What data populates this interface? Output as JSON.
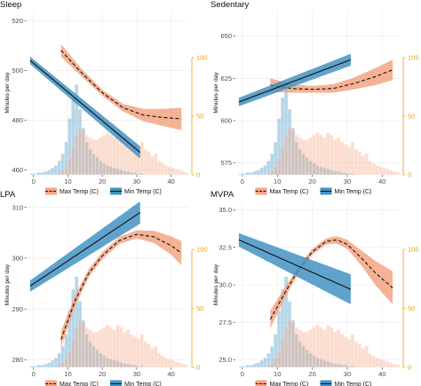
{
  "figure": {
    "y_axis_label": "Minutes per day"
  },
  "colors": {
    "max_temp": "#f4a582",
    "min_temp": "#4393c3",
    "secondary_axis": "#e3a21a"
  },
  "legend": {
    "entries": [
      "Max Temp (C)",
      "Min Temp (C)"
    ]
  },
  "chart_data": [
    {
      "type": "line",
      "title": "Sleep",
      "ylabel": "Minutes per day",
      "xlim": [
        -2,
        45
      ],
      "ylim": [
        458,
        524
      ],
      "x_ticks": [
        0,
        10,
        20,
        30,
        40
      ],
      "y_ticks": [
        460,
        480,
        500,
        520
      ],
      "secondary_axis": {
        "ylim": [
          0,
          140
        ],
        "ticks": [
          0,
          50,
          100
        ]
      },
      "series": [
        {
          "name": "Max Temp (C)",
          "style": "dashed curve with ribbon",
          "x": [
            8,
            14,
            20,
            26,
            32,
            38,
            43
          ],
          "y": [
            508,
            499,
            491,
            485,
            482,
            481,
            480.5
          ],
          "band_half_width": [
            2.5,
            1.5,
            1.2,
            1.5,
            2.5,
            3.5,
            4.5
          ]
        },
        {
          "name": "Min Temp (C)",
          "style": "solid line with ribbon",
          "x": [
            -1,
            31
          ],
          "y": [
            504,
            467
          ],
          "band_half_width": [
            1.5,
            2.5
          ]
        }
      ],
      "histograms": [
        {
          "name": "Min Temp (C)",
          "x_start": -1,
          "bin_width": 1,
          "counts": [
            1,
            1,
            2,
            2,
            3,
            4,
            6,
            8,
            12,
            18,
            28,
            48,
            66,
            77,
            56,
            40,
            28,
            22,
            18,
            15,
            12,
            10,
            8,
            7,
            6,
            5,
            4,
            3,
            3,
            2,
            2,
            1,
            1
          ]
        },
        {
          "name": "Max Temp (C)",
          "x_start": 7,
          "bin_width": 1,
          "counts": [
            2,
            4,
            8,
            14,
            24,
            34,
            40,
            38,
            34,
            32,
            30,
            30,
            32,
            34,
            36,
            34,
            32,
            36,
            34,
            30,
            32,
            28,
            26,
            24,
            28,
            22,
            20,
            16,
            18,
            12,
            10,
            8,
            7,
            6,
            5,
            4,
            3,
            2
          ]
        }
      ]
    },
    {
      "type": "line",
      "title": "Sedentary",
      "ylabel": "Minutes per day",
      "xlim": [
        -2,
        45
      ],
      "ylim": [
        568,
        665
      ],
      "x_ticks": [
        0,
        10,
        20,
        30,
        40
      ],
      "y_ticks": [
        575,
        600,
        625,
        650
      ],
      "secondary_axis": {
        "ylim": [
          0,
          140
        ],
        "ticks": [
          0,
          50,
          100
        ]
      },
      "series": [
        {
          "name": "Max Temp (C)",
          "style": "dashed curve with ribbon",
          "x": [
            8,
            14,
            20,
            26,
            32,
            38,
            43
          ],
          "y": [
            621,
            619,
            618.5,
            619,
            622,
            626,
            630
          ],
          "band_half_width": [
            4,
            2.5,
            2,
            2.5,
            3.5,
            5,
            6
          ]
        },
        {
          "name": "Min Temp (C)",
          "style": "solid line with ribbon",
          "x": [
            -1,
            31
          ],
          "y": [
            611,
            636
          ],
          "band_half_width": [
            2.5,
            3.5
          ]
        }
      ],
      "histograms": [
        {
          "name": "Min Temp (C)",
          "x_start": -1,
          "bin_width": 1,
          "counts": [
            1,
            1,
            2,
            2,
            3,
            4,
            6,
            8,
            12,
            18,
            28,
            48,
            66,
            77,
            56,
            40,
            28,
            22,
            18,
            15,
            12,
            10,
            8,
            7,
            6,
            5,
            4,
            3,
            3,
            2,
            2,
            1,
            1
          ]
        },
        {
          "name": "Max Temp (C)",
          "x_start": 7,
          "bin_width": 1,
          "counts": [
            2,
            4,
            8,
            14,
            24,
            34,
            40,
            38,
            34,
            32,
            30,
            30,
            32,
            34,
            36,
            34,
            32,
            36,
            34,
            30,
            32,
            28,
            26,
            24,
            28,
            22,
            20,
            16,
            18,
            12,
            10,
            8,
            7,
            6,
            5,
            4,
            3,
            2
          ]
        }
      ]
    },
    {
      "type": "line",
      "title": "LPA",
      "ylabel": "Minutes per day",
      "xlim": [
        -2,
        45
      ],
      "ylim": [
        278.5,
        311
      ],
      "x_ticks": [
        0,
        10,
        20,
        30,
        40
      ],
      "y_ticks": [
        280,
        290,
        300,
        310
      ],
      "secondary_axis": {
        "ylim": [
          0,
          140
        ],
        "ticks": [
          0,
          50,
          100
        ]
      },
      "series": [
        {
          "name": "Max Temp (C)",
          "style": "dashed curve with ribbon",
          "x": [
            8,
            12,
            16,
            20,
            25,
            30,
            35,
            40,
            43
          ],
          "y": [
            284,
            291.5,
            297,
            300.5,
            303.5,
            304.7,
            304.2,
            302.5,
            301
          ],
          "band_half_width": [
            1.6,
            1.1,
            0.8,
            0.7,
            0.7,
            0.8,
            1.2,
            1.8,
            2.4
          ]
        },
        {
          "name": "Min Temp (C)",
          "style": "solid line with ribbon",
          "x": [
            -1,
            31
          ],
          "y": [
            294.5,
            309
          ],
          "band_half_width": [
            1.1,
            2.2
          ]
        }
      ],
      "histograms": [
        {
          "name": "Min Temp (C)",
          "x_start": -1,
          "bin_width": 1,
          "counts": [
            1,
            1,
            2,
            2,
            3,
            4,
            6,
            8,
            12,
            18,
            28,
            48,
            66,
            77,
            56,
            40,
            28,
            22,
            18,
            15,
            12,
            10,
            8,
            7,
            6,
            5,
            4,
            3,
            3,
            2,
            2,
            1,
            1
          ]
        },
        {
          "name": "Max Temp (C)",
          "x_start": 7,
          "bin_width": 1,
          "counts": [
            2,
            4,
            8,
            14,
            24,
            34,
            40,
            38,
            34,
            32,
            30,
            30,
            32,
            34,
            36,
            34,
            32,
            36,
            34,
            30,
            32,
            28,
            26,
            24,
            28,
            22,
            20,
            16,
            18,
            12,
            10,
            8,
            7,
            6,
            5,
            4,
            3,
            2
          ]
        }
      ]
    },
    {
      "type": "line",
      "title": "MVPA",
      "ylabel": "Minutes per day",
      "xlim": [
        -2,
        45
      ],
      "ylim": [
        24.5,
        35.5
      ],
      "x_ticks": [
        0,
        10,
        20,
        30,
        40
      ],
      "y_ticks": [
        25.0,
        27.5,
        30.0,
        32.5,
        35.0
      ],
      "secondary_axis": {
        "ylim": [
          0,
          140
        ],
        "ticks": [
          0,
          50,
          100
        ]
      },
      "series": [
        {
          "name": "Max Temp (C)",
          "style": "dashed curve with ribbon",
          "x": [
            8,
            12,
            16,
            20,
            24,
            27,
            30,
            34,
            38,
            43
          ],
          "y": [
            27.7,
            29.4,
            31.0,
            32.2,
            32.9,
            33.0,
            32.7,
            31.8,
            30.8,
            29.8
          ],
          "band_half_width": [
            0.6,
            0.35,
            0.25,
            0.2,
            0.2,
            0.25,
            0.3,
            0.5,
            0.8,
            1.1
          ]
        },
        {
          "name": "Min Temp (C)",
          "style": "solid line with ribbon",
          "x": [
            -1,
            31
          ],
          "y": [
            33.0,
            29.7
          ],
          "band_half_width": [
            0.45,
            1.0
          ]
        }
      ],
      "histograms": [
        {
          "name": "Min Temp (C)",
          "x_start": -1,
          "bin_width": 1,
          "counts": [
            1,
            1,
            2,
            2,
            3,
            4,
            6,
            8,
            12,
            18,
            28,
            48,
            66,
            77,
            56,
            40,
            28,
            22,
            18,
            15,
            12,
            10,
            8,
            7,
            6,
            5,
            4,
            3,
            3,
            2,
            2,
            1,
            1
          ]
        },
        {
          "name": "Max Temp (C)",
          "x_start": 7,
          "bin_width": 1,
          "counts": [
            2,
            4,
            8,
            14,
            24,
            34,
            40,
            38,
            34,
            32,
            30,
            30,
            32,
            34,
            36,
            34,
            32,
            36,
            34,
            30,
            32,
            28,
            26,
            24,
            28,
            22,
            20,
            16,
            18,
            12,
            10,
            8,
            7,
            6,
            5,
            4,
            3,
            2
          ]
        }
      ]
    }
  ]
}
